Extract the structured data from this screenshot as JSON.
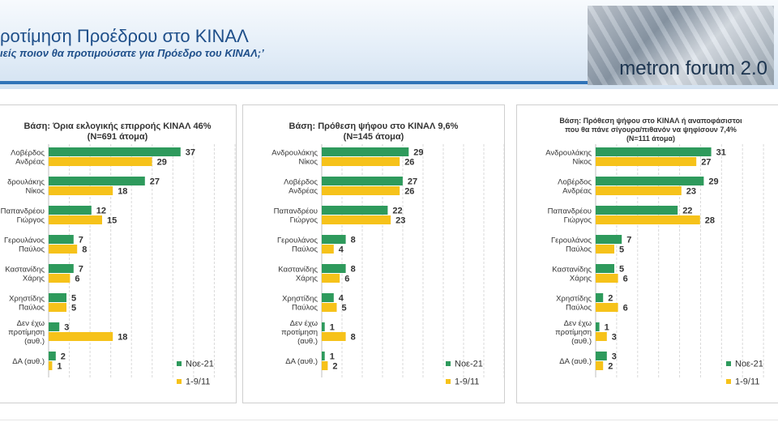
{
  "header": {
    "title": "ροτίμηση Προέδρου στο ΚΙΝΑΛ",
    "subtitle": "ιείς ποιον θα προτιμούσατε για Πρόεδρο του ΚΙΝΑΛ;’",
    "logo_text": "metron forum 2.0"
  },
  "colors": {
    "series1": "#2e9a5c",
    "series2": "#f6c21a"
  },
  "chart_data": [
    {
      "type": "bar",
      "title_lines": [
        "Βάση: Όρια εκλογικής επιρροής ΚΙΝΑΛ 46%",
        "(N=691 άτομα)"
      ],
      "categories": [
        [
          "Λοβέρδος",
          "Ανδρέας"
        ],
        [
          "δρουλάκης",
          "Νίκος"
        ],
        [
          "Παπανδρέου",
          "Γιώργος"
        ],
        [
          "Γερουλάνος",
          "Παύλος"
        ],
        [
          "Καστανίδης",
          "Χάρης"
        ],
        [
          "Χρηστίδης",
          "Παύλος"
        ],
        [
          "Δεν έχω",
          "προτίμηση",
          "(αυθ.)"
        ],
        [
          "ΔΑ (αυθ.)"
        ]
      ],
      "series": [
        {
          "name": "Νοε-21",
          "values": [
            37,
            27,
            12,
            7,
            7,
            5,
            3,
            2
          ]
        },
        {
          "name": "1-9/11",
          "values": [
            29,
            18,
            15,
            8,
            6,
            5,
            18,
            1
          ]
        }
      ],
      "xlim": [
        0,
        50
      ],
      "grid": true,
      "legend": "bottom-right"
    },
    {
      "type": "bar",
      "title_lines": [
        "Βάση: Πρόθεση ψήφου στο ΚΙΝΑΛ 9,6%",
        "(N=145 άτομα)"
      ],
      "categories": [
        [
          "Ανδρουλάκης",
          "Νίκος"
        ],
        [
          "Λοβέρδος",
          "Ανδρέας"
        ],
        [
          "Παπανδρέου",
          "Γιώργος"
        ],
        [
          "Γερουλάνος",
          "Παύλος"
        ],
        [
          "Καστανίδης",
          "Χάρης"
        ],
        [
          "Χρηστίδης",
          "Παύλος"
        ],
        [
          "Δεν έχω",
          "προτίμηση",
          "(αυθ.)"
        ],
        [
          "ΔΑ (αυθ.)"
        ]
      ],
      "series": [
        {
          "name": "Νοε-21",
          "values": [
            29,
            27,
            22,
            8,
            8,
            4,
            1,
            1
          ]
        },
        {
          "name": "1-9/11",
          "values": [
            26,
            26,
            23,
            4,
            6,
            5,
            8,
            2
          ]
        }
      ],
      "xlim": [
        0,
        50
      ],
      "grid": true,
      "legend": "bottom-right"
    },
    {
      "type": "bar",
      "title_lines": [
        "Βάση: Πρόθεση ψήφου στο ΚΙΝΑΛ ή αναποφάσιστοι",
        "που θα πάνε σίγουρα/πιθανόν να ψηφίσουν 7,4%",
        "(N=111 άτομα)"
      ],
      "categories": [
        [
          "Ανδρουλάκης",
          "Νίκος"
        ],
        [
          "Λοβέρδος",
          "Ανδρέας"
        ],
        [
          "Παπανδρέου",
          "Γιώργος"
        ],
        [
          "Γερουλάνος",
          "Παύλος"
        ],
        [
          "Καστανίδης",
          "Χάρης"
        ],
        [
          "Χρηστίδης",
          "Παύλος"
        ],
        [
          "Δεν έχω",
          "προτίμηση",
          "(αυθ.)"
        ],
        [
          "ΔΑ (αυθ.)"
        ]
      ],
      "series": [
        {
          "name": "Νοε-21",
          "values": [
            31,
            29,
            22,
            7,
            5,
            2,
            1,
            3
          ]
        },
        {
          "name": "1-9/11",
          "values": [
            27,
            23,
            28,
            5,
            6,
            6,
            3,
            2
          ]
        }
      ],
      "xlim": [
        0,
        50
      ],
      "grid": true,
      "legend": "bottom-right"
    }
  ]
}
